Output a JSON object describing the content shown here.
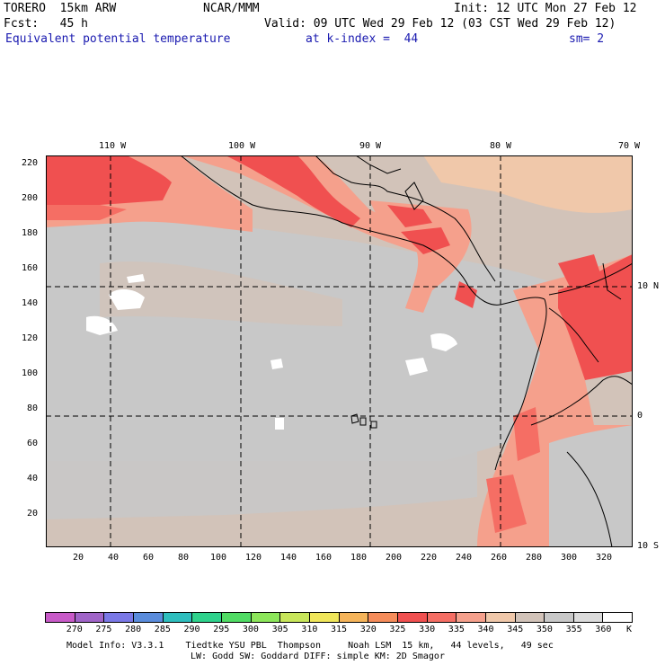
{
  "header": {
    "model": "TORERO  15km ARW",
    "center": "NCAR/MMM",
    "init": "Init: 12 UTC Mon 27 Feb 12",
    "fcst": "Fcst:   45 h",
    "valid": "Valid: 09 UTC Wed 29 Feb 12 (03 CST Wed 29 Feb 12)",
    "field": "Equivalent potential temperature",
    "level": "at k-index =  44",
    "smooth": "sm= 2"
  },
  "map": {
    "lon_labels": [
      "110 W",
      "100 W",
      "90 W",
      "80 W",
      "70 W"
    ],
    "lat_labels": [
      "10 N",
      "0",
      "10 S"
    ],
    "grid_y_ticks": [
      "220",
      "200",
      "180",
      "160",
      "140",
      "120",
      "100",
      "80",
      "60",
      "40",
      "20"
    ],
    "grid_x_ticks": [
      "20",
      "40",
      "60",
      "80",
      "100",
      "120",
      "140",
      "160",
      "180",
      "200",
      "220",
      "240",
      "260",
      "280",
      "300",
      "320"
    ]
  },
  "colorbar": {
    "labels": [
      "270",
      "275",
      "280",
      "285",
      "290",
      "295",
      "300",
      "305",
      "310",
      "315",
      "320",
      "325",
      "330",
      "335",
      "340",
      "345",
      "350",
      "355",
      "360"
    ],
    "unit": "K",
    "colors": [
      "#c85ac8",
      "#a064c8",
      "#7a78e6",
      "#5a8cdc",
      "#2ebebe",
      "#2ed28c",
      "#50dc64",
      "#8ce65a",
      "#c8e65a",
      "#f0e65a",
      "#f5b45a",
      "#f58c5a",
      "#f05050",
      "#f56e64",
      "#f5a08c",
      "#f0c8aa",
      "#d2c3b9",
      "#c8c8c8",
      "#dcdcdc",
      "#ffffff"
    ]
  },
  "footer": {
    "line1": "Model Info: V3.3.1    Tiedtke YSU PBL  Thompson     Noah LSM  15 km,   44 levels,   49 sec",
    "line2": "LW: Godd SW: Goddard DIFF: simple KM: 2D Smagor"
  }
}
